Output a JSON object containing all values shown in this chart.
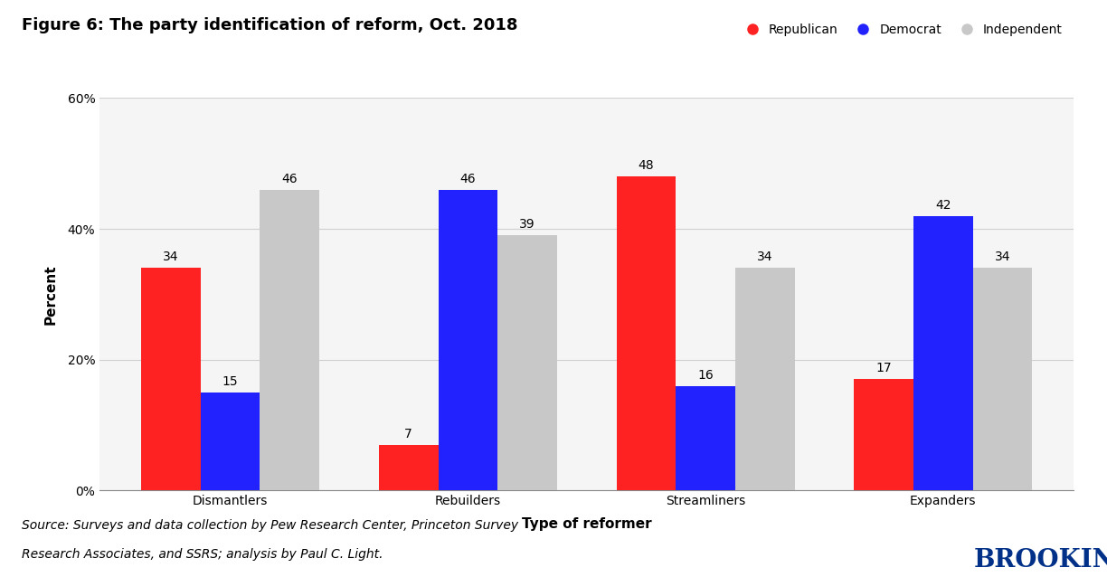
{
  "title": "Figure 6: The party identification of reform, Oct. 2018",
  "categories": [
    "Dismantlers",
    "Rebuilders",
    "Streamliners",
    "Expanders"
  ],
  "series": {
    "Republican": [
      34,
      7,
      48,
      17
    ],
    "Democrat": [
      15,
      46,
      16,
      42
    ],
    "Independent": [
      46,
      39,
      34,
      34
    ]
  },
  "colors": {
    "Republican": "#FF2222",
    "Democrat": "#2222FF",
    "Independent": "#C8C8C8"
  },
  "xlabel": "Type of reformer",
  "ylabel": "Percent",
  "ylim": [
    0,
    60
  ],
  "yticks": [
    0,
    20,
    40,
    60
  ],
  "ytick_labels": [
    "0%",
    "20%",
    "40%",
    "60%"
  ],
  "source_line1": "Source: Surveys and data collection by Pew Research Center, Princeton Survey",
  "source_line2": "Research Associates, and SSRS; analysis by Paul C. Light.",
  "brookings_text": "BROOKINGS",
  "brookings_color": "#003087",
  "title_fontsize": 13,
  "axis_label_fontsize": 11,
  "tick_fontsize": 10,
  "legend_fontsize": 10,
  "bar_label_fontsize": 10,
  "source_fontsize": 10,
  "bar_width": 0.25,
  "background_color": "#f0f0f0"
}
